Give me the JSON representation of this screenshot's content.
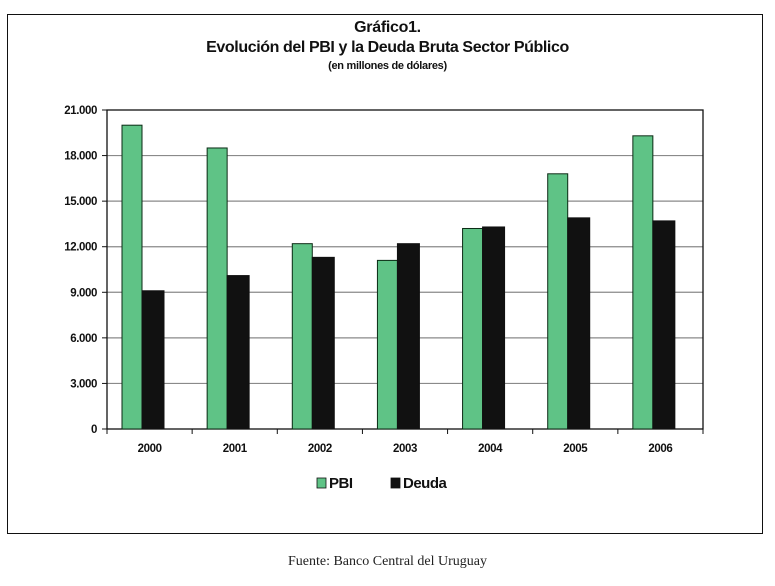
{
  "chart_data": {
    "type": "bar",
    "title": "Gráfico1.",
    "subtitle": "Evolución del PBI y la Deuda Bruta Sector Público",
    "units_note": "(en millones de dólares)",
    "xlabel": "",
    "ylabel": "",
    "categories": [
      "2000",
      "2001",
      "2002",
      "2003",
      "2004",
      "2005",
      "2006"
    ],
    "series": [
      {
        "name": "PBI",
        "color": "#5fc386",
        "values": [
          20000,
          18500,
          12200,
          11100,
          13200,
          16800,
          19300
        ]
      },
      {
        "name": "Deuda",
        "color": "#111111",
        "values": [
          9100,
          10100,
          11300,
          12200,
          13300,
          13900,
          13700
        ]
      }
    ],
    "ylim": [
      0,
      21000
    ],
    "yticks": [
      0,
      3000,
      6000,
      9000,
      12000,
      15000,
      18000,
      21000
    ],
    "ytick_labels": [
      "0",
      "3.000",
      "6.000",
      "9.000",
      "12.000",
      "15.000",
      "18.000",
      "21.000"
    ],
    "grid": true,
    "legend_position": "bottom-center"
  },
  "source": "Fuente: Banco Central del Uruguay"
}
